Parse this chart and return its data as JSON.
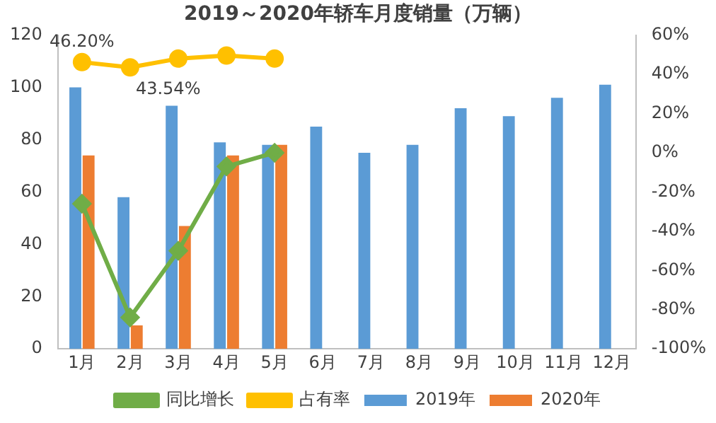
{
  "chart_data": {
    "type": "bar",
    "title": "2019～2020年轿车月度销量（万辆）",
    "categories": [
      "1月",
      "2月",
      "3月",
      "4月",
      "5月",
      "6月",
      "7月",
      "8月",
      "9月",
      "10月",
      "11月",
      "12月"
    ],
    "series": [
      {
        "name": "2019年",
        "color": "#5b9bd5",
        "values": [
          100,
          58,
          93,
          79,
          78,
          85,
          75,
          78,
          92,
          89,
          96,
          101
        ]
      },
      {
        "name": "2020年",
        "color": "#ed7d31",
        "values": [
          74,
          9,
          47,
          74,
          78,
          null,
          null,
          null,
          null,
          null,
          null,
          null
        ]
      },
      {
        "name": "同比增长",
        "type": "line",
        "axis": "y2",
        "color": "#70ad47",
        "marker": "diamond",
        "values": [
          -26,
          -84,
          -50,
          -7,
          0,
          null,
          null,
          null,
          null,
          null,
          null,
          null
        ]
      },
      {
        "name": "占有率",
        "type": "line",
        "axis": "y2",
        "color": "#ffc000",
        "marker": "circle",
        "values": [
          46.2,
          43.54,
          48,
          49.6,
          48,
          null,
          null,
          null,
          null,
          null,
          null,
          null
        ],
        "value_labels": [
          "46.20%",
          "43.54%",
          null,
          null,
          null,
          null,
          null,
          null,
          null,
          null,
          null,
          null
        ]
      }
    ],
    "ylim": [
      0,
      120
    ],
    "yticks": [
      0,
      20,
      40,
      60,
      80,
      100,
      120
    ],
    "y2lim": [
      -100,
      60
    ],
    "y2ticks": [
      {
        "value": -100,
        "label": "-100%"
      },
      {
        "value": -80,
        "label": "-80%"
      },
      {
        "value": -60,
        "label": "-60%"
      },
      {
        "value": -40,
        "label": "-40%"
      },
      {
        "value": -20,
        "label": "-20%"
      },
      {
        "value": 0,
        "label": "0%"
      },
      {
        "value": 20,
        "label": "20%"
      },
      {
        "value": 40,
        "label": "40%"
      },
      {
        "value": 60,
        "label": "60%"
      }
    ],
    "grid": false,
    "legend": "bottom",
    "line_style": "solid"
  }
}
